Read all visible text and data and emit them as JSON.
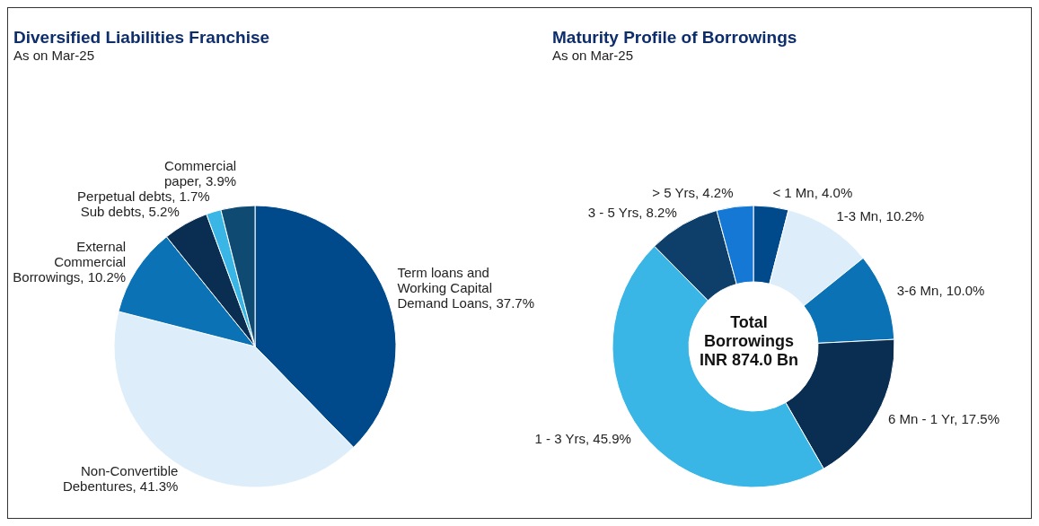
{
  "chart_data": [
    {
      "type": "pie",
      "title": "Diversified Liabilities Franchise",
      "subtitle": "As on Mar-25",
      "categories": [
        "Term loans and Working Capital Demand Loans",
        "Non-Convertible Debentures",
        "External Commercial Borrowings",
        "Sub debts",
        "Perpetual debts",
        "Commercial paper"
      ],
      "values": [
        37.7,
        41.3,
        10.2,
        5.2,
        1.7,
        3.9
      ],
      "value_labels": [
        "37.7%",
        "41.3%",
        "10.2%",
        "5.2%",
        "1.7%",
        "3.9%"
      ],
      "colors": [
        "#004a8c",
        "#ddeefa",
        "#0b72b5",
        "#0a2d52",
        "#3ab6e6",
        "#0e4a72"
      ],
      "legend": false
    },
    {
      "type": "donut",
      "title": "Maturity Profile of Borrowings",
      "subtitle": "As on Mar-25",
      "categories": [
        "< 1 Mn",
        "1-3 Mn",
        "3-6 Mn",
        "6 Mn - 1 Yr",
        "1 - 3 Yrs",
        "3 - 5 Yrs",
        "> 5 Yrs"
      ],
      "values": [
        4.0,
        10.2,
        10.0,
        17.5,
        45.9,
        8.2,
        4.2
      ],
      "value_labels": [
        "4.0%",
        "10.2%",
        "10.0%",
        "17.5%",
        "45.9%",
        "8.2%",
        "4.2%"
      ],
      "colors": [
        "#004a8c",
        "#ddeefa",
        "#0b72b5",
        "#0a2d52",
        "#3ab6e6",
        "#0e3f6a",
        "#1478d4"
      ],
      "annotations": [
        "Total Borrowings INR 874.0 Bn"
      ],
      "legend": false
    }
  ]
}
